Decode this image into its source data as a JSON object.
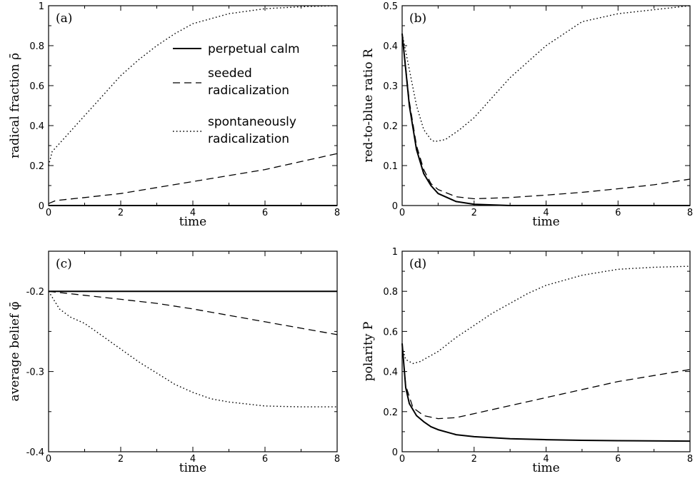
{
  "chart_data": [
    {
      "type": "line",
      "panel_label": "(a)",
      "xlabel": "time",
      "ylabel": "radical fraction ρ̄",
      "xlim": [
        0,
        8
      ],
      "ylim": [
        0,
        1
      ],
      "xticks": [
        "0",
        "2",
        "4",
        "6",
        "8"
      ],
      "yticks": [
        "0",
        "0.2",
        "0.4",
        "0.6",
        "0.8",
        "1"
      ],
      "legend_position": "middle-right",
      "series": [
        {
          "name": "perpetual calm",
          "style": "solid",
          "x": [
            0,
            2,
            4,
            6,
            8
          ],
          "values": [
            0.0,
            0.0,
            0.0,
            0.0,
            0.0
          ]
        },
        {
          "name": "seeded radicalization",
          "style": "dashed",
          "x": [
            0,
            0.2,
            1,
            2,
            3,
            4,
            5,
            6,
            7,
            8
          ],
          "values": [
            0.01,
            0.025,
            0.04,
            0.06,
            0.09,
            0.12,
            0.15,
            0.18,
            0.22,
            0.26
          ]
        },
        {
          "name": "spontaneously radicalization",
          "style": "dotted",
          "x": [
            0,
            0.1,
            0.5,
            1,
            1.5,
            2,
            2.5,
            3,
            3.5,
            4,
            5,
            6,
            7,
            8
          ],
          "values": [
            0.2,
            0.27,
            0.35,
            0.45,
            0.55,
            0.65,
            0.73,
            0.8,
            0.86,
            0.91,
            0.96,
            0.985,
            0.995,
            1.0
          ]
        }
      ]
    },
    {
      "type": "line",
      "panel_label": "(b)",
      "xlabel": "time",
      "ylabel": "red-to-blue ratio R",
      "xlim": [
        0,
        8
      ],
      "ylim": [
        0,
        0.5
      ],
      "xticks": [
        "0",
        "2",
        "4",
        "6",
        "8"
      ],
      "yticks": [
        "0",
        "0.1",
        "0.2",
        "0.3",
        "0.4",
        "0.5"
      ],
      "series": [
        {
          "name": "perpetual calm",
          "style": "solid",
          "x": [
            0,
            0.2,
            0.4,
            0.6,
            0.8,
            1,
            1.5,
            2,
            3,
            4,
            8
          ],
          "values": [
            0.43,
            0.25,
            0.14,
            0.08,
            0.05,
            0.03,
            0.01,
            0.003,
            0.0,
            0.0,
            0.0
          ]
        },
        {
          "name": "seeded radicalization",
          "style": "dashed",
          "x": [
            0,
            0.2,
            0.4,
            0.6,
            0.8,
            1,
            1.5,
            2,
            3,
            4,
            5,
            6,
            7,
            8
          ],
          "values": [
            0.43,
            0.26,
            0.15,
            0.09,
            0.055,
            0.04,
            0.022,
            0.017,
            0.02,
            0.026,
            0.033,
            0.042,
            0.052,
            0.066
          ]
        },
        {
          "name": "spontaneously radicalization",
          "style": "dotted",
          "x": [
            0,
            0.2,
            0.4,
            0.6,
            0.8,
            0.9,
            1.2,
            1.6,
            2,
            2.5,
            3,
            3.5,
            4,
            4.5,
            5,
            6,
            7,
            8
          ],
          "values": [
            0.43,
            0.34,
            0.25,
            0.19,
            0.165,
            0.16,
            0.165,
            0.19,
            0.22,
            0.27,
            0.32,
            0.36,
            0.4,
            0.43,
            0.46,
            0.48,
            0.49,
            0.5
          ]
        }
      ]
    },
    {
      "type": "line",
      "panel_label": "(c)",
      "xlabel": "time",
      "ylabel": "average belief φ̄",
      "xlim": [
        0,
        8
      ],
      "ylim": [
        -0.4,
        -0.15
      ],
      "xticks": [
        "0",
        "2",
        "4",
        "6",
        "8"
      ],
      "yticks": [
        "-0.4",
        "-0.3",
        "-0.2"
      ],
      "series": [
        {
          "name": "perpetual calm",
          "style": "solid",
          "x": [
            0,
            8
          ],
          "values": [
            -0.2,
            -0.2
          ]
        },
        {
          "name": "seeded radicalization",
          "style": "dashed",
          "x": [
            0,
            1,
            2,
            3,
            4,
            5,
            6,
            7,
            8
          ],
          "values": [
            -0.2,
            -0.205,
            -0.21,
            -0.215,
            -0.222,
            -0.23,
            -0.238,
            -0.246,
            -0.254
          ]
        },
        {
          "name": "spontaneously radicalization",
          "style": "dotted",
          "x": [
            0,
            0.3,
            0.6,
            1,
            1.5,
            2,
            2.5,
            3,
            3.5,
            4,
            4.5,
            5,
            6,
            7,
            8
          ],
          "values": [
            -0.2,
            -0.222,
            -0.232,
            -0.24,
            -0.256,
            -0.272,
            -0.288,
            -0.302,
            -0.316,
            -0.326,
            -0.334,
            -0.338,
            -0.343,
            -0.344,
            -0.344
          ]
        }
      ]
    },
    {
      "type": "line",
      "panel_label": "(d)",
      "xlabel": "time",
      "ylabel": "polarity P",
      "xlim": [
        0,
        8
      ],
      "ylim": [
        0,
        1
      ],
      "xticks": [
        "0",
        "2",
        "4",
        "6",
        "8"
      ],
      "yticks": [
        "0",
        "0.2",
        "0.4",
        "0.6",
        "0.8",
        "1"
      ],
      "series": [
        {
          "name": "perpetual calm",
          "style": "solid",
          "x": [
            0,
            0.1,
            0.2,
            0.4,
            0.6,
            0.8,
            1,
            1.5,
            2,
            3,
            4,
            5,
            6,
            8
          ],
          "values": [
            0.54,
            0.32,
            0.24,
            0.18,
            0.15,
            0.125,
            0.11,
            0.085,
            0.075,
            0.065,
            0.06,
            0.057,
            0.055,
            0.053
          ]
        },
        {
          "name": "seeded radicalization",
          "style": "dashed",
          "x": [
            0,
            0.1,
            0.3,
            0.6,
            1,
            1.5,
            2,
            3,
            4,
            5,
            6,
            7,
            8
          ],
          "values": [
            0.54,
            0.33,
            0.22,
            0.18,
            0.165,
            0.17,
            0.19,
            0.23,
            0.27,
            0.31,
            0.35,
            0.38,
            0.41
          ]
        },
        {
          "name": "spontaneously radicalization",
          "style": "dotted",
          "x": [
            0,
            0.1,
            0.3,
            0.5,
            1,
            1.5,
            2,
            2.5,
            3,
            3.5,
            4,
            5,
            6,
            7,
            8
          ],
          "values": [
            0.52,
            0.46,
            0.44,
            0.45,
            0.5,
            0.57,
            0.63,
            0.69,
            0.74,
            0.79,
            0.83,
            0.88,
            0.91,
            0.92,
            0.925
          ]
        }
      ]
    }
  ]
}
